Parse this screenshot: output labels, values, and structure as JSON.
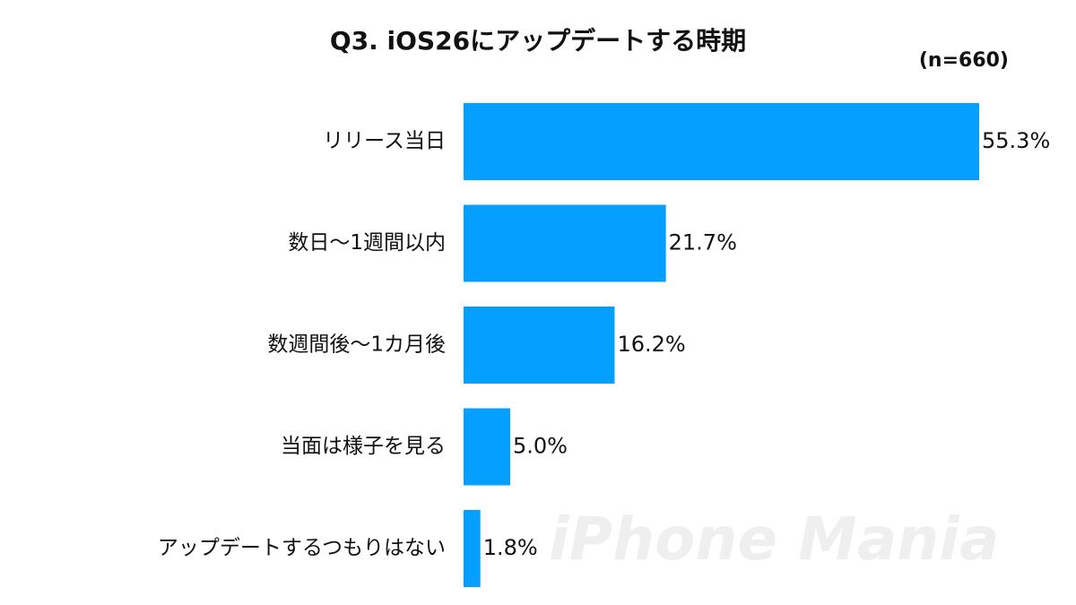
{
  "chart_data": {
    "type": "bar",
    "orientation": "horizontal",
    "title": "Q3. iOS26にアップデートする時期",
    "subtitle": "(n=660)",
    "categories": [
      "リリース当日",
      "数日〜1週間以内",
      "数週間後〜1カ月後",
      "当面は様子を見る",
      "アップデートするつもりはない"
    ],
    "values": [
      55.3,
      21.7,
      16.2,
      5.0,
      1.8
    ],
    "value_labels": [
      "55.3%",
      "21.7%",
      "16.2%",
      "5.0%",
      "1.8%"
    ],
    "color": "#05a0ff",
    "watermark": "iPhone Mania"
  }
}
